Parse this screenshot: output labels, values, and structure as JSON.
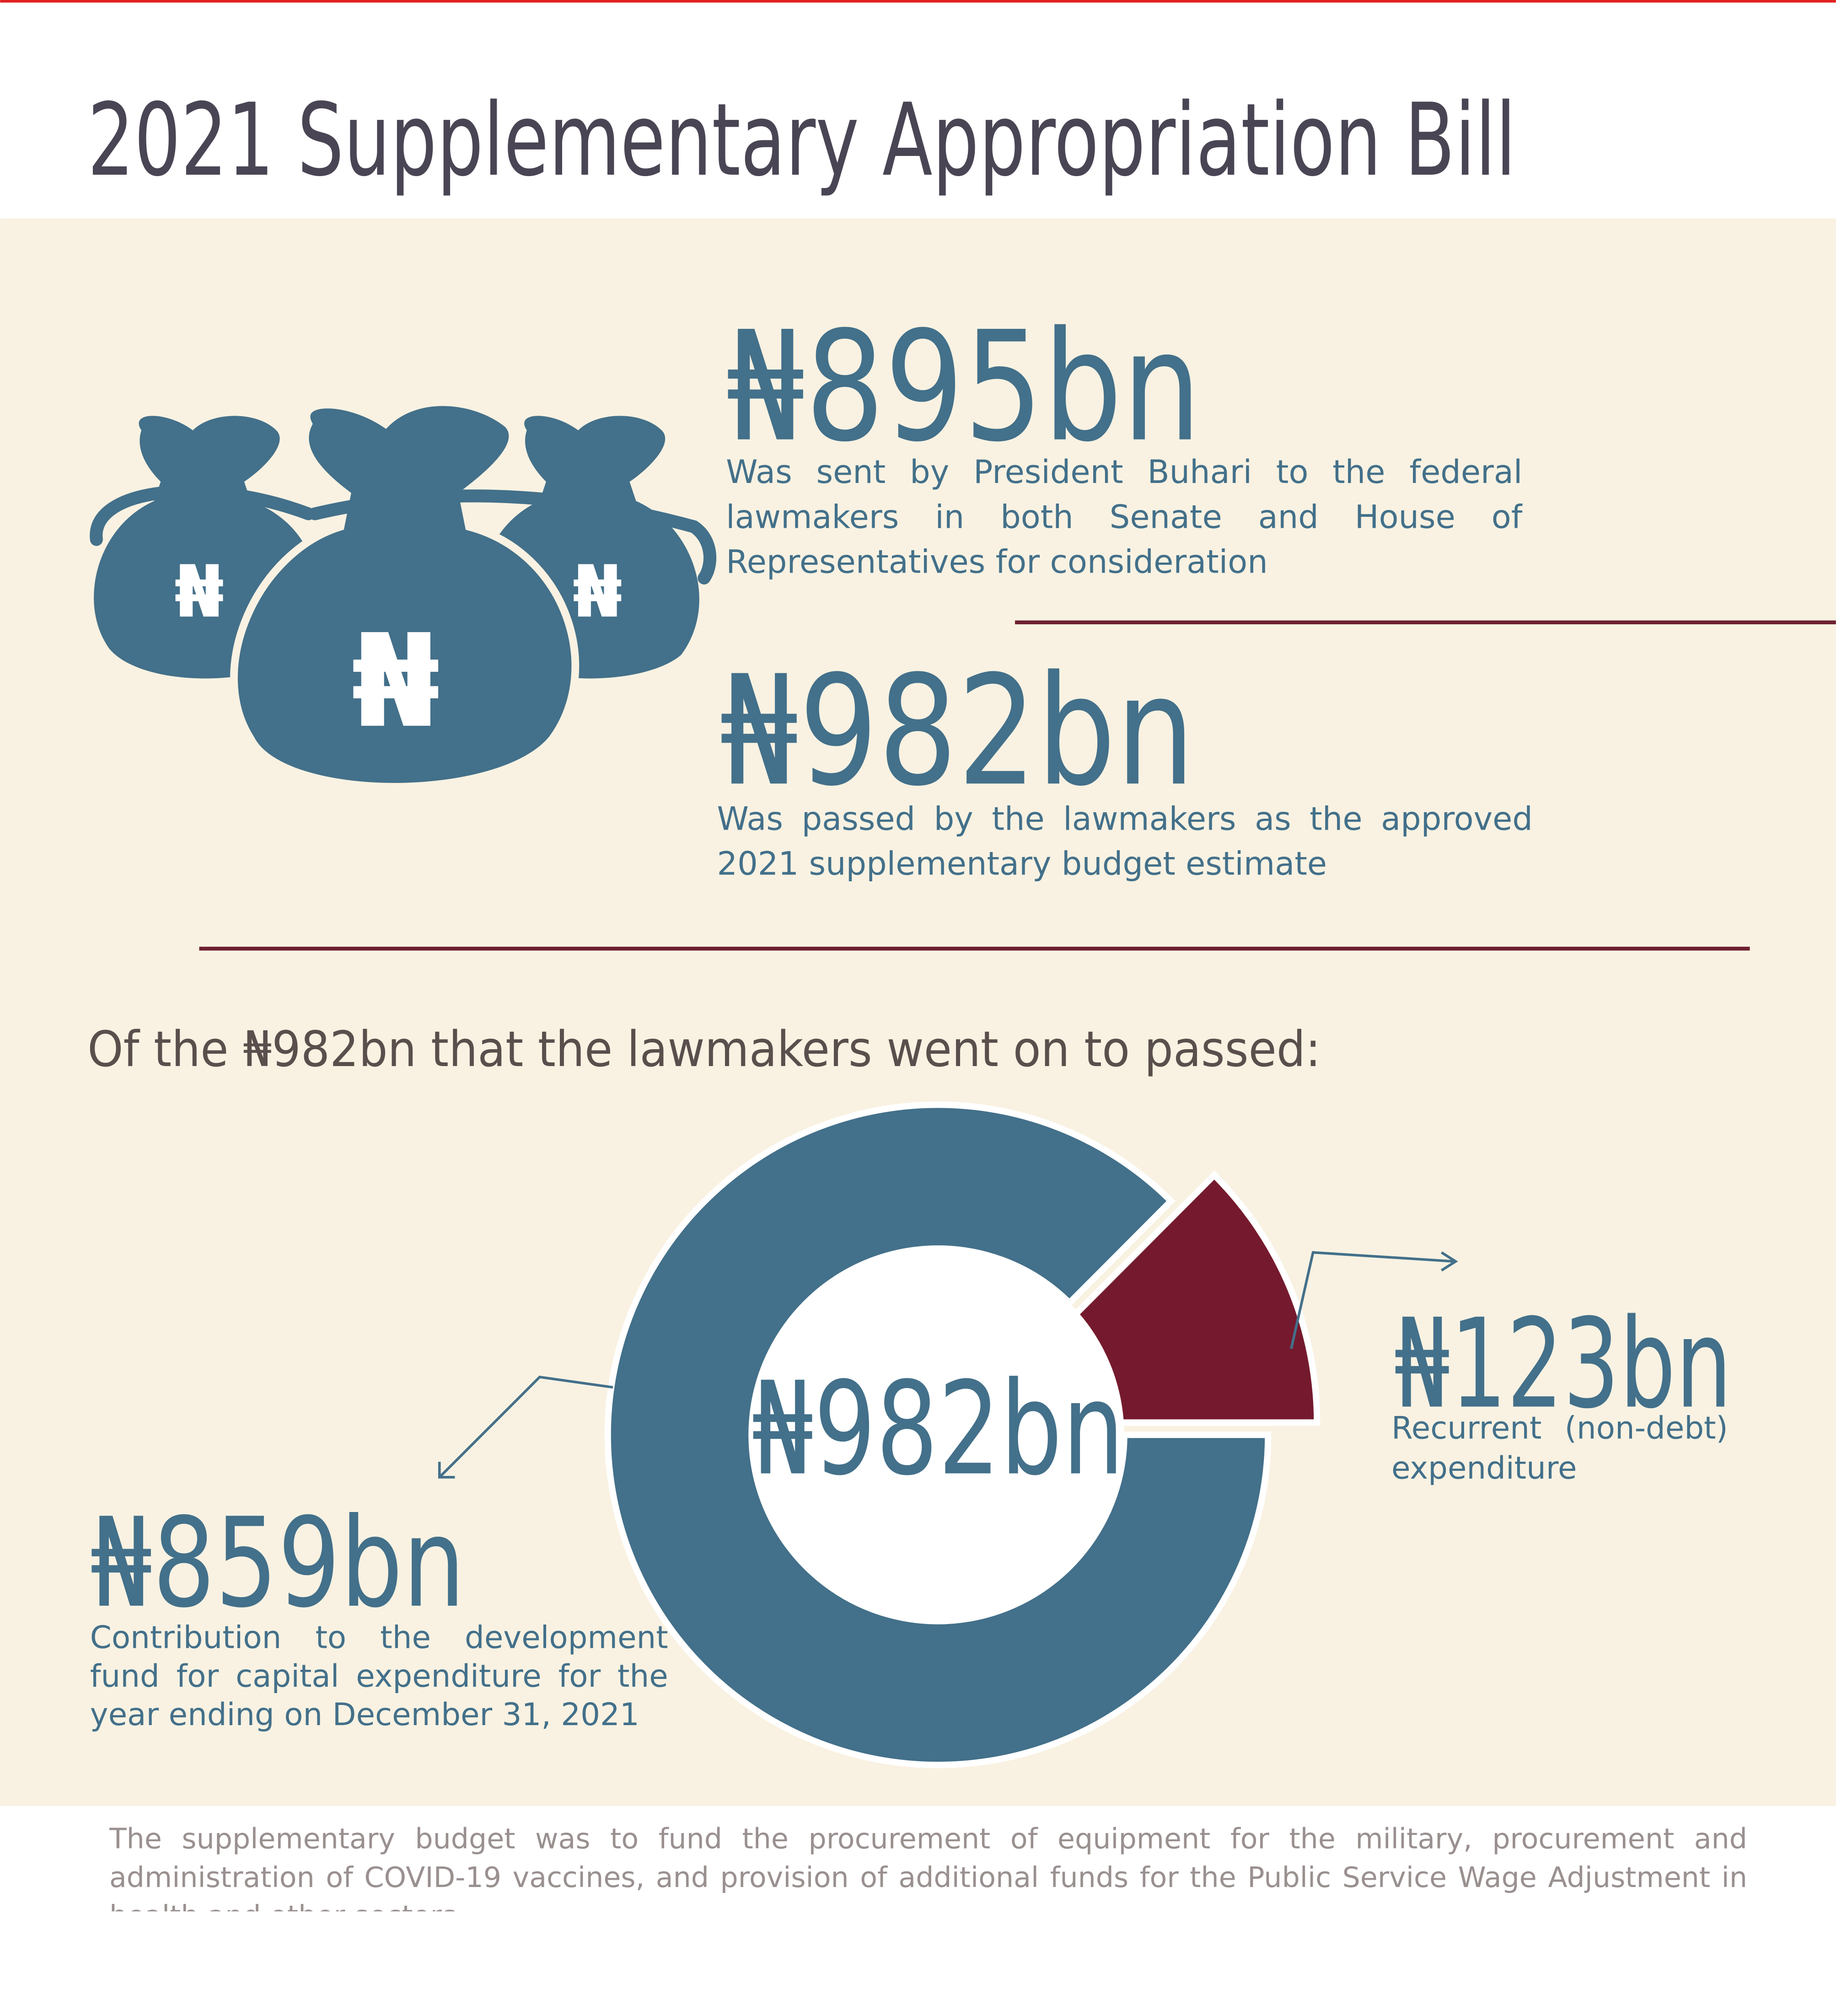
{
  "title": "2021 Supplementary Appropriation Bill",
  "stats": [
    {
      "value": "₦895bn",
      "text": "Was sent by President Buhari to the federal lawmakers in both Senate and House of Representatives for consideration"
    },
    {
      "value": "₦982bn",
      "text": "Was passed by the lawmakers as the approved 2021 supplementary budget estimate"
    }
  ],
  "intro": "Of the ₦982bn that the lawmakers went on to passed:",
  "chart_data": {
    "type": "donut",
    "center_label": "₦982bn",
    "categories": [
      "Contribution to the development fund for capital expenditure for the year ending on December 31, 2021",
      "Recurrent (non-debt) expenditure"
    ],
    "values": [
      859,
      123
    ],
    "value_labels": [
      "₦859bn",
      "₦123bn"
    ],
    "colors": [
      "#43708a",
      "#751a2e"
    ]
  },
  "footnote": "The supplementary budget was to fund the procurement of equipment for the military, procurement and administration of COVID-19 vaccines, and provision of additional funds for the Public Service Wage Adjustment in health and other sectors"
}
